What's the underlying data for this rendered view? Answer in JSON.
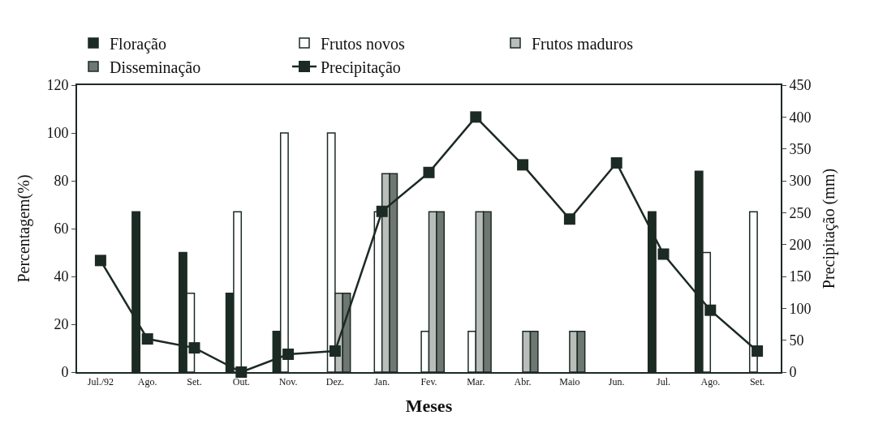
{
  "chart_data": {
    "type": "bar",
    "xlabel": "Meses",
    "ylabel": "Percentagem(%)",
    "y2label": "Precipitação (mm)",
    "categories": [
      "Jul./92",
      "Ago.",
      "Set.",
      "Out.",
      "Nov.",
      "Dez.",
      "Jan.",
      "Fev.",
      "Mar.",
      "Abr.",
      "Maio",
      "Jun.",
      "Jul.",
      "Ago.",
      "Set."
    ],
    "series": [
      {
        "name": "Floração",
        "color": "#1c2a24",
        "values": [
          null,
          67,
          50,
          33,
          17,
          null,
          null,
          null,
          null,
          null,
          null,
          null,
          67,
          84,
          null
        ]
      },
      {
        "name": "Frutos novos",
        "color": "#ffffff",
        "values": [
          null,
          null,
          33,
          67,
          100,
          100,
          67,
          17,
          17,
          null,
          null,
          null,
          null,
          50,
          67
        ]
      },
      {
        "name": "Frutos maduros",
        "color": "#b9bebb",
        "values": [
          null,
          null,
          null,
          null,
          null,
          33,
          83,
          67,
          67,
          17,
          17,
          null,
          null,
          null,
          null
        ]
      },
      {
        "name": "Disseminação",
        "color": "#6e7772",
        "values": [
          null,
          null,
          null,
          null,
          null,
          33,
          83,
          67,
          67,
          17,
          17,
          null,
          null,
          null,
          null
        ]
      },
      {
        "name": "Precipitação",
        "type": "line",
        "axis": "y2",
        "color": "#1c2a24",
        "marker": "square",
        "values": [
          175,
          52,
          38,
          0,
          28,
          33,
          252,
          313,
          400,
          325,
          240,
          328,
          185,
          97,
          33
        ]
      }
    ],
    "ylim": [
      0,
      120
    ],
    "yticks": [
      0,
      20,
      40,
      60,
      80,
      100,
      120
    ],
    "y2lim": [
      0,
      450
    ],
    "y2ticks": [
      0,
      50,
      100,
      150,
      200,
      250,
      300,
      350,
      400,
      450
    ],
    "legend": "top"
  }
}
